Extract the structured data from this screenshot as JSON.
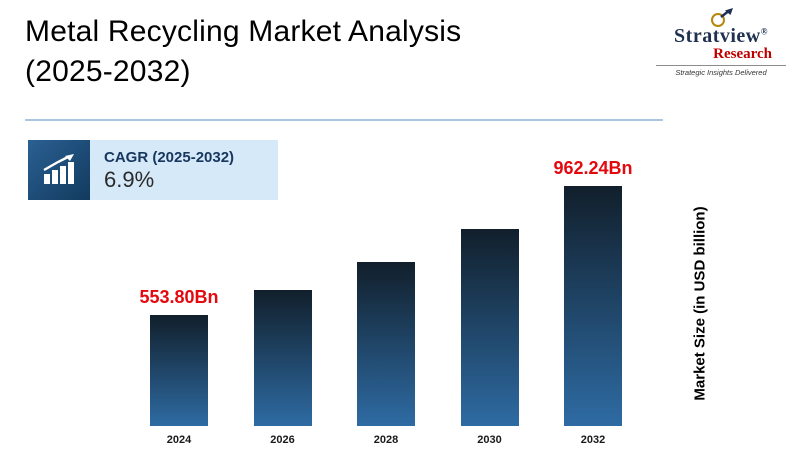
{
  "page": {
    "title_line1": "Metal Recycling Market Analysis",
    "title_line2": "(2025-2032)"
  },
  "logo": {
    "name": "Stratview",
    "reg": "®",
    "sub": "Research",
    "tagline": "Strategic Insights Delivered"
  },
  "cagr": {
    "label": "CAGR (2025-2032)",
    "value": "6.9%"
  },
  "chart_data": {
    "type": "bar",
    "title": "Metal Recycling Market Analysis (2025-2032)",
    "categories": [
      "2024",
      "2026",
      "2028",
      "2030",
      "2032"
    ],
    "values": [
      553.8,
      633,
      723,
      827,
      962.24
    ],
    "value_labels": [
      "553.80Bn",
      "",
      "",
      "",
      "962.24Bn"
    ],
    "xlabel": "",
    "ylabel": "Market Size (in USD billion)",
    "ylim": [
      0,
      1050
    ],
    "grid": false,
    "legend": false,
    "bar_gradient": {
      "top": "#111f2b",
      "bottom": "#2e6ba3"
    }
  },
  "colors": {
    "value_label_red": "#e4090e",
    "navy": "#17375e",
    "cagr_bg": "#d6e9f8",
    "logo_navy": "#1f3050",
    "logo_red": "#c00000",
    "rule_blue": "#aac7e2"
  }
}
